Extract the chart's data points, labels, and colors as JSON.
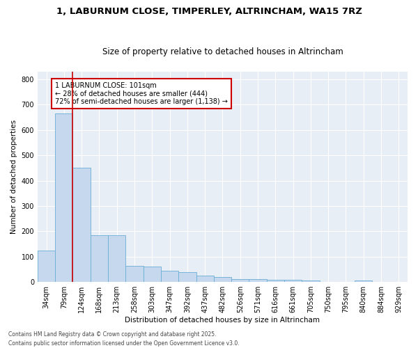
{
  "title_line1": "1, LABURNUM CLOSE, TIMPERLEY, ALTRINCHAM, WA15 7RZ",
  "title_line2": "Size of property relative to detached houses in Altrincham",
  "xlabel": "Distribution of detached houses by size in Altrincham",
  "ylabel": "Number of detached properties",
  "categories": [
    "34sqm",
    "79sqm",
    "124sqm",
    "168sqm",
    "213sqm",
    "258sqm",
    "303sqm",
    "347sqm",
    "392sqm",
    "437sqm",
    "482sqm",
    "526sqm",
    "571sqm",
    "616sqm",
    "661sqm",
    "705sqm",
    "750sqm",
    "795sqm",
    "840sqm",
    "884sqm",
    "929sqm"
  ],
  "values": [
    125,
    665,
    450,
    185,
    185,
    65,
    60,
    45,
    40,
    25,
    20,
    12,
    12,
    10,
    8,
    5,
    0,
    0,
    5,
    0,
    0
  ],
  "bar_color": "#c5d8ed",
  "bar_edge_color": "#6aaed6",
  "vline_x": 1.5,
  "vline_color": "#cc0000",
  "annotation_text": "1 LABURNUM CLOSE: 101sqm\n← 28% of detached houses are smaller (444)\n72% of semi-detached houses are larger (1,138) →",
  "annotation_box_color": "#cc0000",
  "ylim": [
    0,
    830
  ],
  "yticks": [
    0,
    100,
    200,
    300,
    400,
    500,
    600,
    700,
    800
  ],
  "background_color": "#e8eef5",
  "footer_line1": "Contains HM Land Registry data © Crown copyright and database right 2025.",
  "footer_line2": "Contains public sector information licensed under the Open Government Licence v3.0.",
  "title_fontsize": 9.5,
  "subtitle_fontsize": 8.5,
  "axis_label_fontsize": 7.5,
  "tick_fontsize": 7,
  "annotation_fontsize": 7,
  "footer_fontsize": 5.5
}
